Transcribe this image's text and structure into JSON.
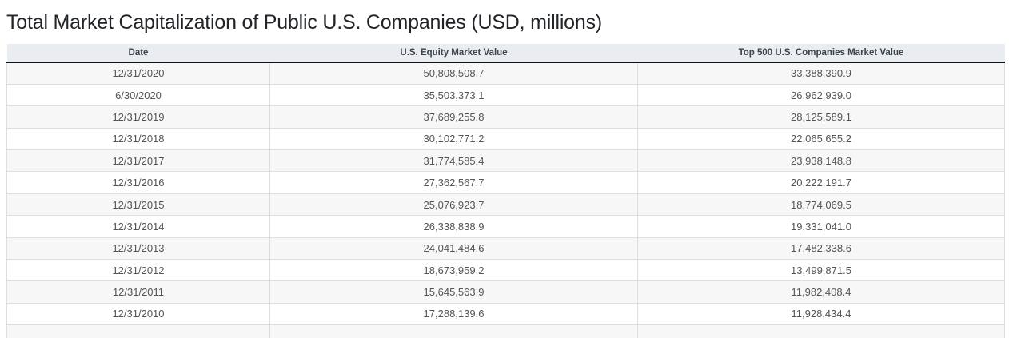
{
  "page": {
    "title": "Total Market Capitalization of Public U.S. Companies (USD, millions)"
  },
  "chart_data": {
    "type": "table",
    "title": "Total Market Capitalization of Public U.S. Companies (USD, millions)",
    "unit": "USD, millions",
    "columns": [
      "Date",
      "U.S. Equity Market Value",
      "Top 500 U.S. Companies Market Value"
    ],
    "rows": [
      [
        "12/31/2020",
        "50,808,508.7",
        "33,388,390.9"
      ],
      [
        "6/30/2020",
        "35,503,373.1",
        "26,962,939.0"
      ],
      [
        "12/31/2019",
        "37,689,255.8",
        "28,125,589.1"
      ],
      [
        "12/31/2018",
        "30,102,771.2",
        "22,065,655.2"
      ],
      [
        "12/31/2017",
        "31,774,585.4",
        "23,938,148.8"
      ],
      [
        "12/31/2016",
        "27,362,567.7",
        "20,222,191.7"
      ],
      [
        "12/31/2015",
        "25,076,923.7",
        "18,774,069.5"
      ],
      [
        "12/31/2014",
        "26,338,838.9",
        "19,331,041.0"
      ],
      [
        "12/31/2013",
        "24,041,484.6",
        "17,482,338.6"
      ],
      [
        "12/31/2012",
        "18,673,959.2",
        "13,499,871.5"
      ],
      [
        "12/31/2011",
        "15,645,563.9",
        "11,982,408.4"
      ],
      [
        "12/31/2010",
        "17,288,139.6",
        "11,928,434.4"
      ]
    ]
  },
  "colors": {
    "header_bg": "#e9edf1",
    "header_text": "#3c4248",
    "header_underline": "#111111",
    "row_stripe": "#f7f7f7",
    "row_border": "#dedede",
    "cell_text": "#555555",
    "title_text": "#212529"
  }
}
